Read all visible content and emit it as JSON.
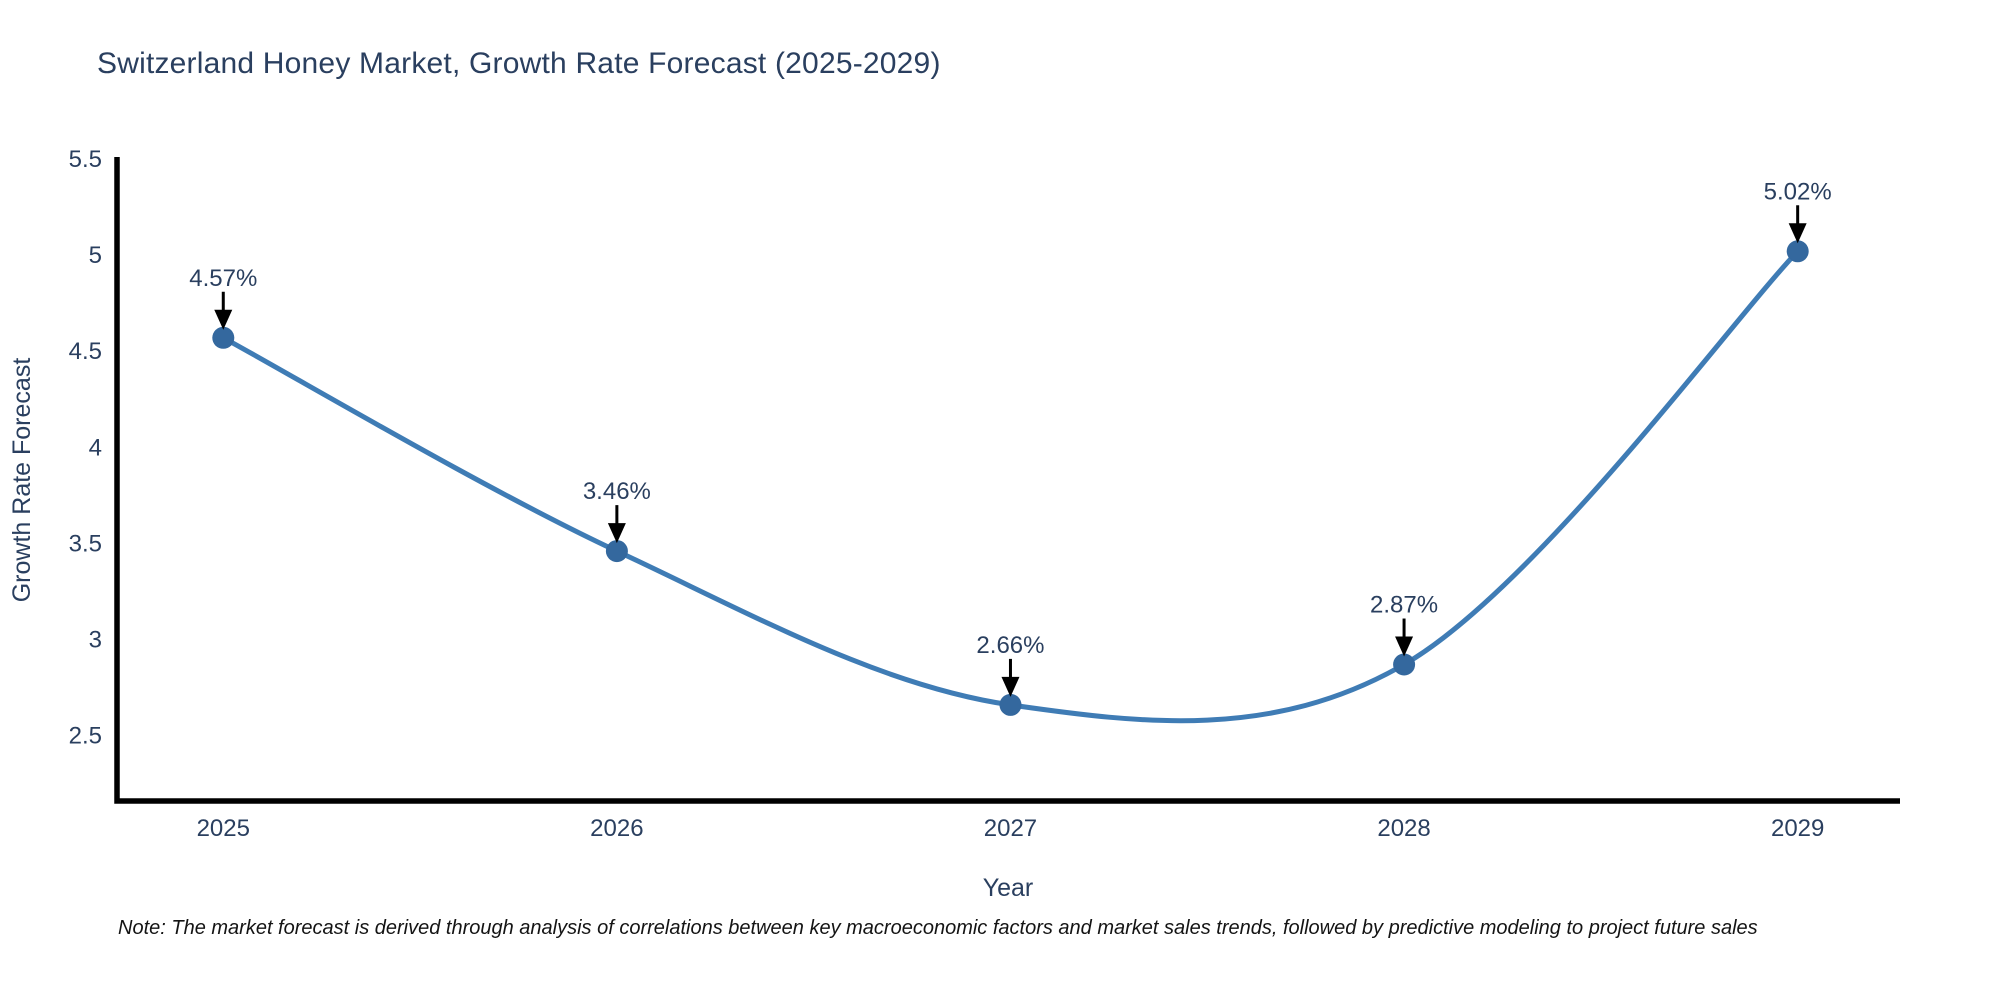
{
  "header": {
    "title": "Switzerland Honey Market, Growth Rate Forecast (2025-2029)"
  },
  "footer": {
    "note": "Note: The market forecast is derived through analysis of correlations between key macroeconomic factors and market sales trends, followed by predictive modeling to project future sales"
  },
  "chart_data": {
    "type": "line",
    "title": "Switzerland Honey Market, Growth Rate Forecast (2025-2029)",
    "xlabel": "Year",
    "ylabel": "Growth Rate Forecast",
    "x": [
      2025,
      2026,
      2027,
      2028,
      2029
    ],
    "values": [
      4.57,
      3.46,
      2.66,
      2.87,
      5.02
    ],
    "point_labels": [
      "4.57%",
      "3.46%",
      "2.66%",
      "2.87%",
      "5.02%"
    ],
    "xtick_labels": [
      "2025",
      "2026",
      "2027",
      "2028",
      "2029"
    ],
    "yticks": [
      5.5,
      5,
      4.5,
      4,
      3.5,
      3,
      2.5
    ],
    "ytick_labels": [
      "5.5",
      "5",
      "4.5",
      "4",
      "3.5",
      "3",
      "2.5"
    ],
    "xlim": [
      2024.73,
      2029.26
    ],
    "ylim": [
      2.16,
      5.5
    ],
    "line_shape": "spline",
    "grid": false,
    "legend": false,
    "colors": {
      "line": "#3f7cb5",
      "marker": "#34689e",
      "axis": "#000000",
      "text": "#2a3f5f",
      "arrow": "#000000",
      "background": "#ffffff"
    }
  }
}
